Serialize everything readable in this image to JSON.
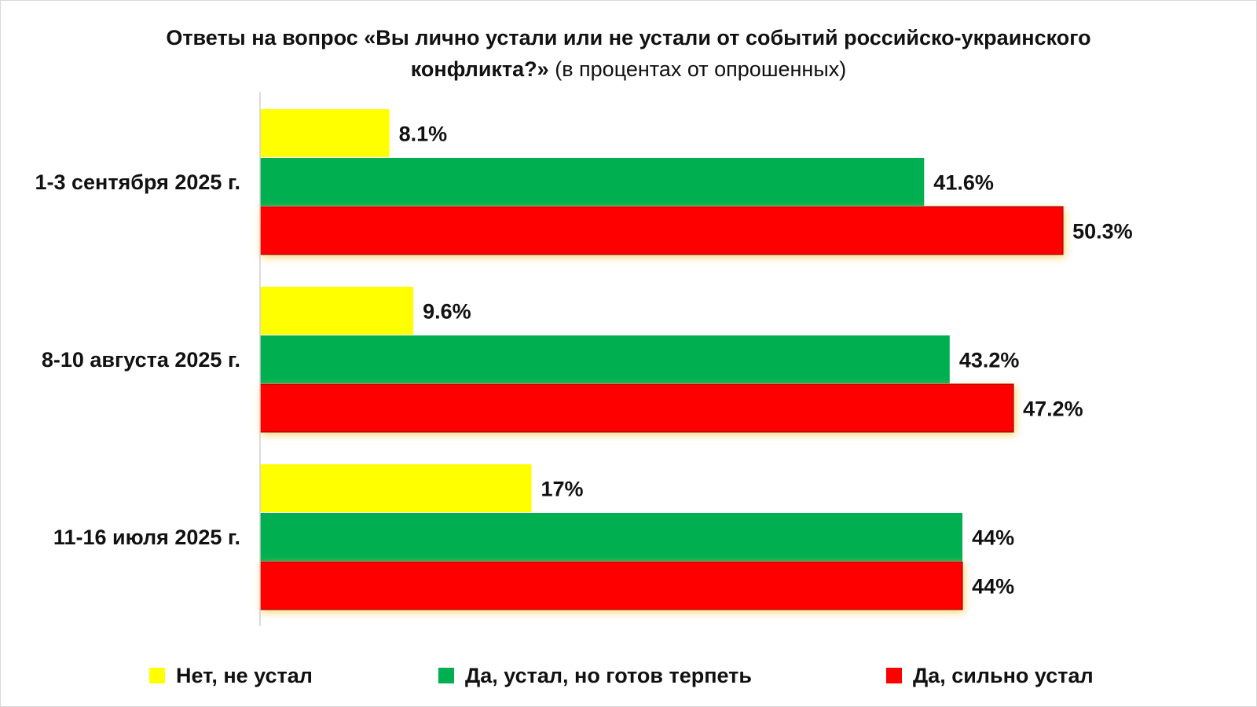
{
  "title": {
    "bold": "Ответы на вопрос «Вы лично устали или не устали от событий российско-украинского",
    "bold2": "конфликта?»",
    "normal": "(в процентах от опрошенных)"
  },
  "chart_data": {
    "type": "bar",
    "orientation": "horizontal",
    "categories": [
      "1-3 сентября 2025 г.",
      "8-10 августа 2025 г.",
      "11-16 июля 2025 г."
    ],
    "series": [
      {
        "name": "Нет, не устал",
        "color": "#ffff00",
        "values": [
          8.1,
          9.6,
          17
        ],
        "labels": [
          "8.1%",
          "9.6%",
          "17%"
        ]
      },
      {
        "name": "Да, устал, но готов терпеть",
        "color": "#00b050",
        "values": [
          41.6,
          43.2,
          44
        ],
        "labels": [
          "41.6%",
          "43.2%",
          "44%"
        ]
      },
      {
        "name": "Да, сильно устал",
        "color": "#ff0000",
        "values": [
          50.3,
          47.2,
          44
        ],
        "labels": [
          "50.3%",
          "47.2%",
          "44%"
        ]
      }
    ],
    "xlim": [
      0,
      50.3
    ],
    "grid": false,
    "legend_position": "bottom"
  },
  "legend": [
    {
      "label": "Нет, не устал",
      "color": "#ffff00"
    },
    {
      "label": "Да, устал, но готов терпеть",
      "color": "#00b050"
    },
    {
      "label": "Да, сильно устал",
      "color": "#ff0000"
    }
  ]
}
